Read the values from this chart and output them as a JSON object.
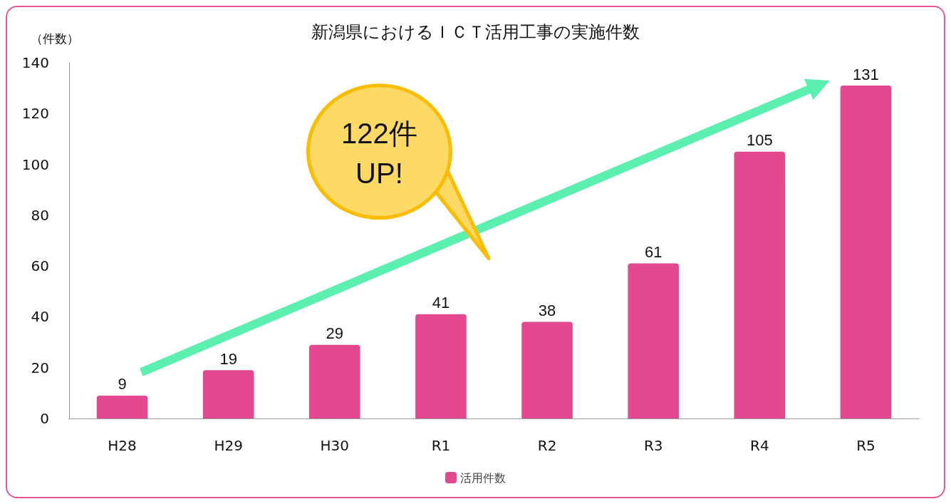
{
  "chart_data": {
    "type": "bar",
    "title": "新潟県におけるＩＣＴ活用工事の実施件数",
    "ylabel": "（件数）",
    "categories": [
      "H28",
      "H29",
      "H30",
      "R1",
      "R2",
      "R3",
      "R4",
      "R5"
    ],
    "series": [
      {
        "name": "活用件数",
        "color": "#e4488e",
        "values": [
          9,
          19,
          29,
          41,
          38,
          61,
          105,
          131
        ]
      }
    ],
    "ylim": [
      0,
      140
    ],
    "yticks": [
      0,
      20,
      40,
      60,
      80,
      100,
      120,
      140
    ],
    "grid": false,
    "legend": "bottom",
    "data_labels": true,
    "annotations": [
      "122件\nUP!"
    ]
  }
}
